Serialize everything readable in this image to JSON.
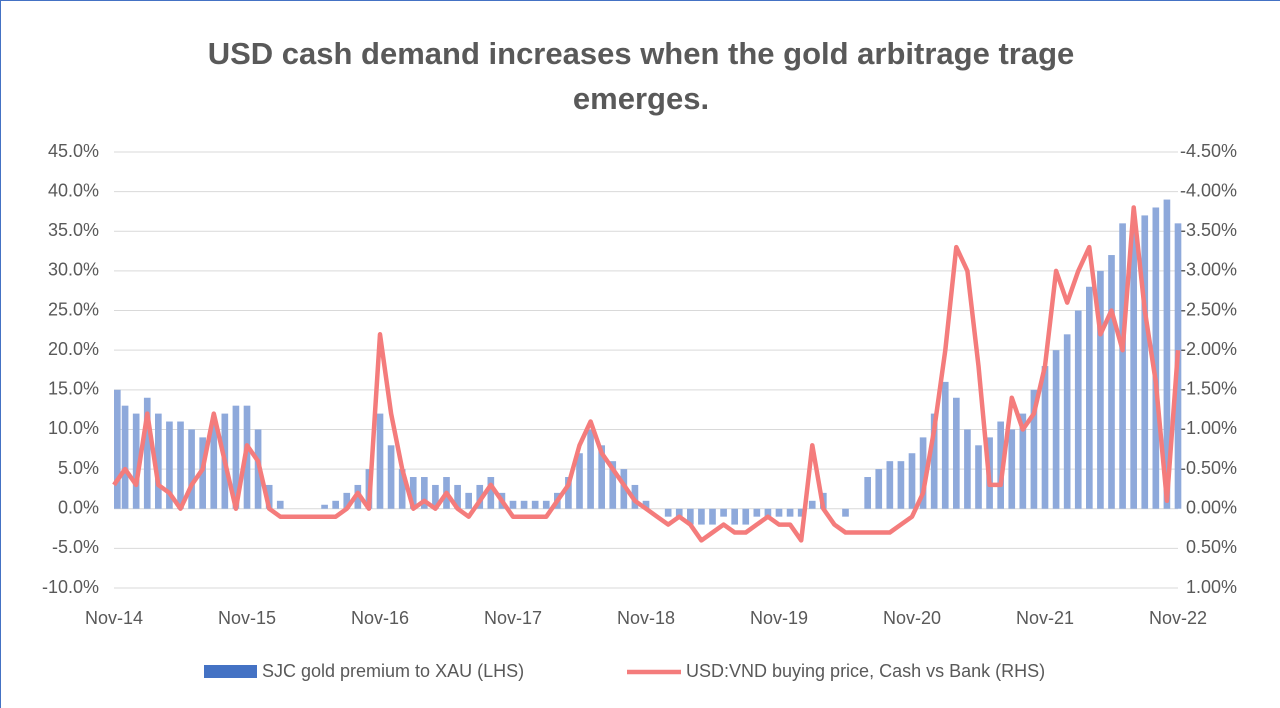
{
  "chart_data": {
    "type": "bar_line",
    "title": "USD cash demand increases when the gold arbitrage trage emerges.",
    "x": [
      "Nov-14",
      "Dec-14",
      "Jan-15",
      "Feb-15",
      "Mar-15",
      "Apr-15",
      "May-15",
      "Jun-15",
      "Jul-15",
      "Aug-15",
      "Sep-15",
      "Oct-15",
      "Nov-15",
      "Dec-15",
      "Jan-16",
      "Feb-16",
      "Mar-16",
      "Apr-16",
      "May-16",
      "Jun-16",
      "Jul-16",
      "Aug-16",
      "Sep-16",
      "Oct-16",
      "Nov-16",
      "Dec-16",
      "Jan-17",
      "Feb-17",
      "Mar-17",
      "Apr-17",
      "May-17",
      "Jun-17",
      "Jul-17",
      "Aug-17",
      "Sep-17",
      "Oct-17",
      "Nov-17",
      "Dec-17",
      "Jan-18",
      "Feb-18",
      "Mar-18",
      "Apr-18",
      "May-18",
      "Jun-18",
      "Jul-18",
      "Aug-18",
      "Sep-18",
      "Oct-18",
      "Nov-18",
      "Dec-18",
      "Jan-19",
      "Feb-19",
      "Mar-19",
      "Apr-19",
      "May-19",
      "Jun-19",
      "Jul-19",
      "Aug-19",
      "Sep-19",
      "Oct-19",
      "Nov-19",
      "Dec-19",
      "Jan-20",
      "Feb-20",
      "Mar-20",
      "Apr-20",
      "May-20",
      "Jun-20",
      "Jul-20",
      "Aug-20",
      "Sep-20",
      "Oct-20",
      "Nov-20",
      "Dec-20",
      "Jan-21",
      "Feb-21",
      "Mar-21",
      "Apr-21",
      "May-21",
      "Jun-21",
      "Jul-21",
      "Aug-21",
      "Sep-21",
      "Oct-21",
      "Nov-21",
      "Dec-21",
      "Jan-22",
      "Feb-22",
      "Mar-22",
      "Apr-22",
      "May-22",
      "Jun-22",
      "Jul-22",
      "Aug-22",
      "Sep-22",
      "Oct-22",
      "Nov-22"
    ],
    "xtick_every": 12,
    "series": [
      {
        "name": "SJC gold premium to XAU (LHS)",
        "color": "#8ea9db",
        "legend_color": "#4472c4",
        "axis": "y",
        "values": [
          15,
          13,
          12,
          14,
          12,
          11,
          11,
          10,
          9,
          11,
          12,
          13,
          13,
          10,
          3,
          1,
          0,
          0,
          0,
          0.5,
          1,
          2,
          3,
          5,
          12,
          8,
          5,
          4,
          4,
          3,
          4,
          3,
          2,
          3,
          4,
          2,
          1,
          1,
          1,
          1,
          2,
          4,
          7,
          10,
          8,
          6,
          5,
          3,
          1,
          0,
          -1,
          -1,
          -2,
          -2,
          -2,
          -1,
          -2,
          -2,
          -1,
          -1,
          -1,
          -1,
          -1,
          1,
          2,
          0,
          -1,
          0,
          4,
          5,
          6,
          6,
          7,
          9,
          12,
          16,
          14,
          10,
          8,
          9,
          11,
          10,
          12,
          15,
          18,
          20,
          22,
          25,
          28,
          30,
          32,
          36,
          35,
          37,
          38,
          39,
          36
        ]
      },
      {
        "name": "USD:VND buying price, Cash vs Bank (RHS)",
        "color": "#f47c7c",
        "axis": "y2",
        "values": [
          -0.3,
          -0.5,
          -0.3,
          -1.2,
          -0.3,
          -0.2,
          0,
          -0.3,
          -0.5,
          -1.2,
          -0.6,
          0,
          -0.8,
          -0.6,
          0,
          0.1,
          0.1,
          0.1,
          0.1,
          0.1,
          0.1,
          0,
          -0.2,
          0,
          -2.2,
          -1.2,
          -0.5,
          0,
          -0.1,
          0,
          -0.2,
          0,
          0.1,
          -0.1,
          -0.3,
          -0.1,
          0.1,
          0.1,
          0.1,
          0.1,
          -0.1,
          -0.3,
          -0.8,
          -1.1,
          -0.7,
          -0.5,
          -0.3,
          -0.1,
          0,
          0.1,
          0.2,
          0.1,
          0.2,
          0.4,
          0.3,
          0.2,
          0.3,
          0.3,
          0.2,
          0.1,
          0.2,
          0.2,
          0.4,
          -0.8,
          0,
          0.2,
          0.3,
          0.3,
          0.3,
          0.3,
          0.3,
          0.2,
          0.1,
          -0.2,
          -1,
          -2,
          -3.3,
          -3,
          -1.8,
          -0.3,
          -0.3,
          -1.4,
          -1,
          -1.2,
          -1.8,
          -3,
          -2.6,
          -3,
          -3.3,
          -2.2,
          -2.5,
          -2,
          -3.8,
          -2.5,
          -1.6,
          -0.1,
          -2
        ]
      }
    ],
    "ylim": [
      -10,
      45
    ],
    "yticks": [
      {
        "value": -10,
        "label": "-10.0%"
      },
      {
        "value": -5,
        "label": "-5.0%"
      },
      {
        "value": 0,
        "label": "0.0%"
      },
      {
        "value": 5,
        "label": "5.0%"
      },
      {
        "value": 10,
        "label": "10.0%"
      },
      {
        "value": 15,
        "label": "15.0%"
      },
      {
        "value": 20,
        "label": "20.0%"
      },
      {
        "value": 25,
        "label": "25.0%"
      },
      {
        "value": 30,
        "label": "30.0%"
      },
      {
        "value": 35,
        "label": "35.0%"
      },
      {
        "value": 40,
        "label": "40.0%"
      },
      {
        "value": 45,
        "label": "45.0%"
      }
    ],
    "y2lim": [
      1,
      -4.5
    ],
    "y2ticks": [
      {
        "value": 1,
        "label": "1.00%"
      },
      {
        "value": 0.5,
        "label": "0.50%"
      },
      {
        "value": 0,
        "label": "0.00%"
      },
      {
        "value": -0.5,
        "label": "-0.50%"
      },
      {
        "value": -1,
        "label": "-1.00%"
      },
      {
        "value": -1.5,
        "label": "-1.50%"
      },
      {
        "value": -2,
        "label": "-2.00%"
      },
      {
        "value": -2.5,
        "label": "-2.50%"
      },
      {
        "value": -3,
        "label": "-3.00%"
      },
      {
        "value": -3.5,
        "label": "-3.50%"
      },
      {
        "value": -4,
        "label": "-4.00%"
      },
      {
        "value": -4.5,
        "label": "-4.50%"
      }
    ],
    "grid": true
  }
}
